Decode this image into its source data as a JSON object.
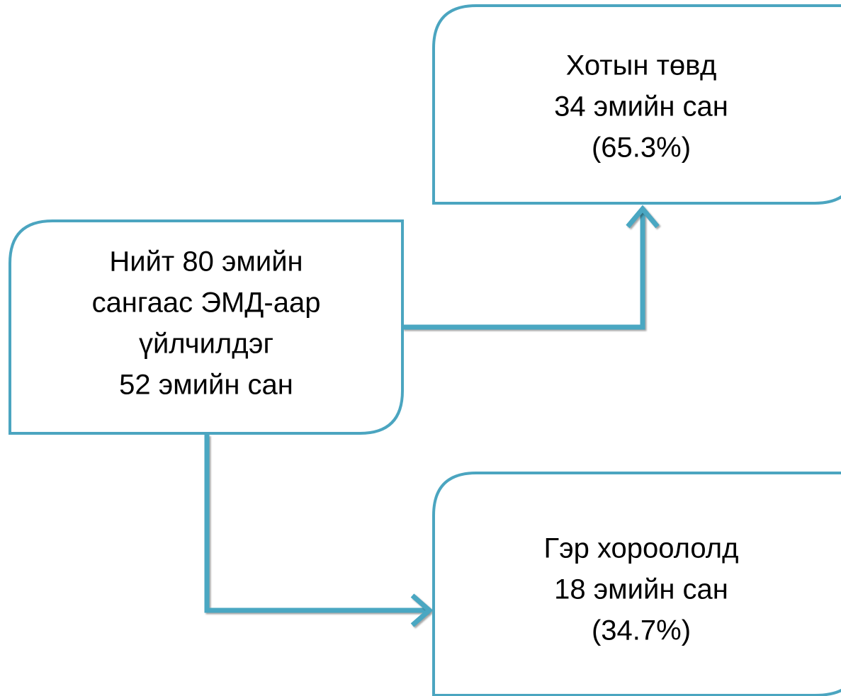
{
  "nodes": [
    {
      "lines": [
        "Нийт 80 эмийн",
        "сангаас ЭМД-аар",
        "үйлчилдэг",
        "52 эмийн сан"
      ]
    },
    {
      "lines": [
        "Хотын төвд",
        "34 эмийн сан",
        "(65.3%)"
      ]
    },
    {
      "lines": [
        "Гэр хороололд",
        "18 эмийн сан",
        "(34.7%)"
      ]
    }
  ]
}
